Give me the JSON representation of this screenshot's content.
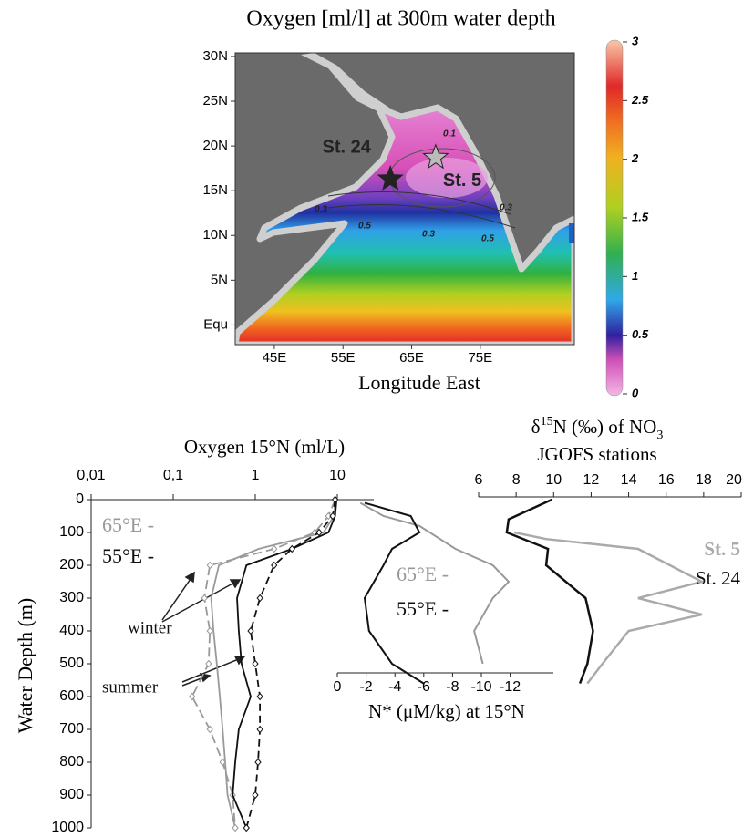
{
  "chart_data": [
    {
      "type": "map",
      "title": "Oxygen [ml/l] at 300m water depth",
      "xlabel": "Longitude East",
      "xlim": [
        39.3,
        88.7
      ],
      "ylim": [
        -2.2,
        30.4
      ],
      "xticks": [
        {
          "value": 45,
          "label": "45E"
        },
        {
          "value": 55,
          "label": "55E"
        },
        {
          "value": 65,
          "label": "65E"
        },
        {
          "value": 75,
          "label": "75E"
        }
      ],
      "yticks": [
        {
          "value": 0,
          "label": "Equ"
        },
        {
          "value": 5,
          "label": "5N"
        },
        {
          "value": 10,
          "label": "10N"
        },
        {
          "value": 15,
          "label": "15N"
        },
        {
          "value": 20,
          "label": "20N"
        },
        {
          "value": 25,
          "label": "25N"
        },
        {
          "value": 30,
          "label": "30N"
        }
      ],
      "colorbar": {
        "lim": [
          0,
          3
        ],
        "ticks": [
          0,
          0.5,
          1,
          1.5,
          2,
          2.5,
          3
        ]
      },
      "contour_labels": [
        0.3,
        0.5,
        0.3,
        0.5,
        0.3,
        0.1
      ],
      "stations": [
        {
          "name": "St. 24",
          "lon": 61.9,
          "lat": 16.3,
          "color": "#222222"
        },
        {
          "name": "St. 5",
          "lon": 68.5,
          "lat": 18.7,
          "color": "#bbbbbb"
        }
      ]
    },
    {
      "type": "profile",
      "title": "Oxygen 15°N (ml/L)",
      "ylabel": "Water Depth (m)",
      "xscale": "log",
      "xlim": [
        0.01,
        10
      ],
      "xticks": [
        {
          "value": 0.01,
          "label": "0,01"
        },
        {
          "value": 0.1,
          "label": "0,1"
        },
        1,
        10
      ],
      "ylim": [
        0,
        1000
      ],
      "yticks": [
        0,
        100,
        200,
        300,
        400,
        500,
        600,
        700,
        800,
        900,
        1000
      ],
      "annotations": [
        "65°E -",
        "55°E -",
        "winter",
        "summer"
      ],
      "series": [
        {
          "color": "#999999",
          "dash": "none",
          "marker": false,
          "depth": [
            0,
            50,
            100,
            150,
            200,
            300,
            400,
            500,
            600,
            700,
            800,
            900,
            1000
          ],
          "values": [
            9.4,
            9.1,
            6.8,
            1.1,
            0.36,
            0.29,
            0.31,
            0.34,
            0.37,
            0.4,
            0.43,
            0.46,
            0.57
          ]
        },
        {
          "color": "#999999",
          "dash": "10,5",
          "marker": true,
          "depth": [
            0,
            50,
            100,
            150,
            200,
            300,
            400,
            500,
            600,
            700,
            800,
            900,
            1000
          ],
          "values": [
            9.4,
            7.8,
            5.3,
            1.7,
            0.28,
            0.24,
            0.28,
            0.27,
            0.17,
            0.28,
            0.4,
            0.53,
            0.57
          ]
        },
        {
          "color": "#111111",
          "dash": "none",
          "marker": false,
          "depth": [
            0,
            50,
            100,
            150,
            200,
            300,
            400,
            500,
            600,
            700,
            800,
            900,
            1000
          ],
          "values": [
            9.8,
            9.4,
            7.8,
            2.8,
            0.78,
            0.6,
            0.63,
            0.68,
            0.88,
            0.63,
            0.57,
            0.53,
            0.78
          ]
        },
        {
          "color": "#111111",
          "dash": "8,5",
          "marker": true,
          "depth": [
            0,
            50,
            100,
            150,
            200,
            300,
            400,
            500,
            600,
            700,
            800,
            900,
            1000
          ],
          "values": [
            9.4,
            8.8,
            6.0,
            2.8,
            1.7,
            1.14,
            0.88,
            1.0,
            1.14,
            1.14,
            1.08,
            1.0,
            0.78
          ]
        }
      ]
    },
    {
      "type": "nstar",
      "xlabel": "N* (μM/kg) at 15°N",
      "xlim": [
        0,
        -15
      ],
      "xticks": [
        0,
        -2,
        -4,
        -6,
        -8,
        -10,
        -12
      ],
      "ylim": [
        0,
        1000
      ],
      "annotations": [
        "65°E -",
        "55°E -"
      ],
      "series": [
        {
          "color": "#999999",
          "depth": [
            10,
            50,
            80,
            150,
            200,
            250,
            300,
            400,
            500
          ],
          "values": [
            -1.6,
            -3.2,
            -5.7,
            -8.2,
            -10.8,
            -11.9,
            -10.8,
            -9.5,
            -10.1
          ]
        },
        {
          "color": "#111111",
          "depth": [
            10,
            50,
            100,
            150,
            200,
            300,
            400,
            500,
            560
          ],
          "values": [
            -1.9,
            -5.1,
            -5.7,
            -3.8,
            -3.2,
            -1.9,
            -2.2,
            -3.8,
            -6.0
          ]
        }
      ]
    },
    {
      "type": "d15n",
      "title_parts": [
        "δ",
        "15",
        "N (‰) of NO",
        "3"
      ],
      "subtitle": "JGOFS stations",
      "xlim": [
        6,
        20
      ],
      "xticks": [
        6,
        8,
        10,
        12,
        14,
        16,
        18,
        20
      ],
      "ylim": [
        0,
        1000
      ],
      "series": [
        {
          "name": "St. 5",
          "color": "#aaaaaa",
          "depth": [
            100,
            120,
            150,
            250,
            300,
            350,
            400,
            500,
            560
          ],
          "values": [
            7.9,
            9.6,
            14.5,
            17.9,
            14.5,
            17.9,
            14.0,
            12.6,
            11.8
          ]
        },
        {
          "name": "St. 24",
          "color": "#111111",
          "depth": [
            0,
            60,
            100,
            150,
            200,
            300,
            400,
            500,
            560
          ],
          "values": [
            9.9,
            7.6,
            7.5,
            9.7,
            9.6,
            11.7,
            12.1,
            11.8,
            11.4
          ]
        }
      ]
    }
  ]
}
